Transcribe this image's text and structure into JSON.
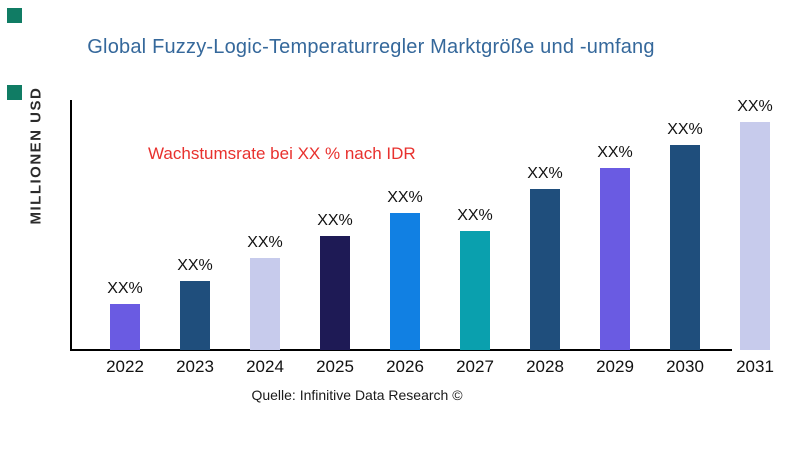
{
  "title": {
    "text": "Global Fuzzy-Logic-Temperaturregler Marktgröße und -umfang",
    "color": "#35689B"
  },
  "y_axis_label": "MILLIONEN USD",
  "annotation": {
    "text": "Wachstumsrate bei XX % nach IDR",
    "color": "#E8312E"
  },
  "source": "Quelle: Infinitive Data Research ©",
  "accent": {
    "square_color": "#107C64"
  },
  "axis_color": "#000000",
  "chart_data": {
    "type": "bar",
    "title": "Global Fuzzy-Logic-Temperaturregler Marktgröße und -umfang",
    "xlabel": "",
    "ylabel": "MILLIONEN USD",
    "categories": [
      "2022",
      "2023",
      "2024",
      "2025",
      "2026",
      "2027",
      "2028",
      "2029",
      "2030",
      "2031"
    ],
    "values": [
      46,
      69,
      92,
      114,
      137,
      119,
      161,
      182,
      205,
      228
    ],
    "bar_labels": [
      "XX%",
      "XX%",
      "XX%",
      "XX%",
      "XX%",
      "XX%",
      "XX%",
      "XX%",
      "XX%",
      "XX%"
    ],
    "bar_colors": [
      "#6A5BE2",
      "#1F4E7C",
      "#C7CBEC",
      "#1E1A55",
      "#1180E3",
      "#0AA0AE",
      "#1F4E7C",
      "#6A5BE2",
      "#1F4E7C",
      "#C7CBEC"
    ],
    "annotation": "Wachstumsrate bei XX % nach IDR",
    "grid": false,
    "legend": false
  }
}
